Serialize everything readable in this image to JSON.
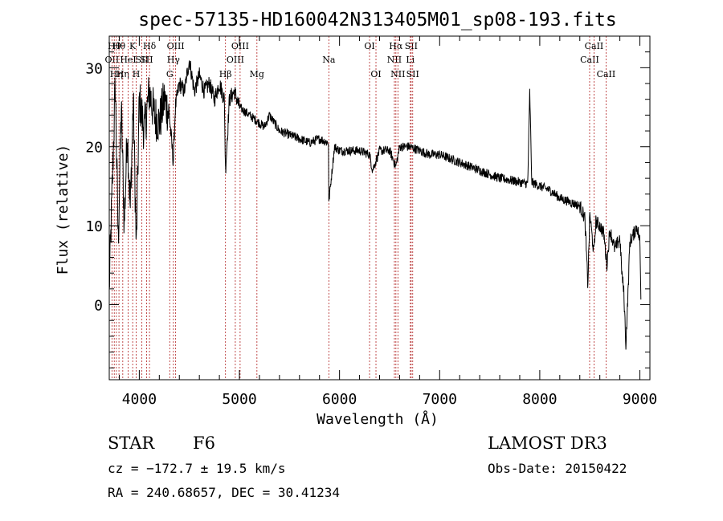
{
  "chart_data": {
    "type": "line",
    "title": "spec-57135-HD160042N313405M01_sp08-193.fits",
    "xlabel": "Wavelength (Å)",
    "ylabel": "Flux (relative)",
    "xlim": [
      3700,
      9100
    ],
    "ylim": [
      -9.5,
      34
    ],
    "xticks": [
      4000,
      5000,
      6000,
      7000,
      8000,
      9000
    ],
    "yticks": [
      0,
      10,
      20,
      30
    ],
    "series": [
      {
        "name": "flux",
        "x": [
          3700,
          3730,
          3760,
          3790,
          3820,
          3850,
          3880,
          3910,
          3940,
          3970,
          4000,
          4050,
          4100,
          4150,
          4200,
          4250,
          4300,
          4340,
          4360,
          4400,
          4450,
          4500,
          4550,
          4600,
          4650,
          4700,
          4750,
          4800,
          4850,
          4861,
          4900,
          4950,
          5000,
          5050,
          5100,
          5150,
          5200,
          5250,
          5300,
          5400,
          5500,
          5600,
          5700,
          5800,
          5890,
          5893,
          5950,
          6000,
          6100,
          6200,
          6300,
          6330,
          6400,
          6500,
          6563,
          6600,
          6700,
          6800,
          6900,
          7000,
          7100,
          7200,
          7300,
          7400,
          7500,
          7600,
          7700,
          7800,
          7880,
          7900,
          7920,
          8000,
          8100,
          8200,
          8300,
          8400,
          8450,
          8480,
          8500,
          8540,
          8560,
          8600,
          8640,
          8670,
          8700,
          8750,
          8800,
          8820,
          8840,
          8860,
          8880,
          8900,
          8940,
          8970,
          9000,
          9010
        ],
        "values": [
          2,
          15,
          28,
          8,
          25,
          10,
          22,
          12,
          26,
          7,
          26,
          22,
          27,
          24,
          23,
          26,
          24,
          18,
          25,
          28,
          27,
          31,
          27,
          29,
          27,
          28,
          26,
          28,
          26,
          17,
          26,
          27,
          25,
          24.5,
          24,
          23.5,
          23,
          22.5,
          24,
          22,
          21.5,
          21,
          20.5,
          21,
          20.5,
          13,
          20,
          19.5,
          19.5,
          19.5,
          19,
          17,
          19.5,
          19.5,
          17.5,
          20,
          20,
          19.5,
          19,
          19,
          18.5,
          18,
          17.5,
          17,
          16.5,
          16,
          15.8,
          15.5,
          15.3,
          27,
          15.5,
          15,
          14.5,
          13.5,
          13,
          12.5,
          11,
          2.5,
          11.5,
          6.5,
          10.5,
          10,
          9,
          5,
          9.5,
          7,
          8.5,
          4,
          1.5,
          -5,
          1,
          8,
          9,
          10,
          8,
          1
        ]
      }
    ],
    "line_marks": [
      {
        "wl": 3727,
        "label": "OII",
        "row": 2
      },
      {
        "wl": 3750,
        "label": "Hθ",
        "row": 1
      },
      {
        "wl": 3771,
        "label": "Hη",
        "row": 3
      },
      {
        "wl": 3797,
        "label": "Hθ",
        "row": 1
      },
      {
        "wl": 3835,
        "label": "Hη",
        "row": 3
      },
      {
        "wl": 3889,
        "label": "HeI",
        "row": 2
      },
      {
        "wl": 3934,
        "label": "K",
        "row": 1
      },
      {
        "wl": 3969,
        "label": "H",
        "row": 3
      },
      {
        "wl": 4026,
        "label": "SII",
        "row": 2
      },
      {
        "wl": 4073,
        "label": "SII",
        "row": 2
      },
      {
        "wl": 4102,
        "label": "Hδ",
        "row": 1
      },
      {
        "wl": 4304,
        "label": "G",
        "row": 3
      },
      {
        "wl": 4341,
        "label": "Hγ",
        "row": 2
      },
      {
        "wl": 4363,
        "label": "OIII",
        "row": 1
      },
      {
        "wl": 4861,
        "label": "Hβ",
        "row": 3
      },
      {
        "wl": 4959,
        "label": "OIII",
        "row": 2
      },
      {
        "wl": 5007,
        "label": "OIII",
        "row": 1
      },
      {
        "wl": 5175,
        "label": "Mg",
        "row": 3
      },
      {
        "wl": 5893,
        "label": "Na",
        "row": 2
      },
      {
        "wl": 6300,
        "label": "OI",
        "row": 1
      },
      {
        "wl": 6364,
        "label": "OI",
        "row": 3
      },
      {
        "wl": 6548,
        "label": "NII",
        "row": 2
      },
      {
        "wl": 6563,
        "label": "Hα",
        "row": 1
      },
      {
        "wl": 6583,
        "label": "NII",
        "row": 3
      },
      {
        "wl": 6707,
        "label": "Li",
        "row": 2
      },
      {
        "wl": 6716,
        "label": "SII",
        "row": 1
      },
      {
        "wl": 6731,
        "label": "SII",
        "row": 3
      },
      {
        "wl": 8498,
        "label": "CaII",
        "row": 2
      },
      {
        "wl": 8542,
        "label": "CaII",
        "row": 1
      },
      {
        "wl": 8662,
        "label": "CaII",
        "row": 3
      }
    ]
  },
  "info": {
    "object_type": "STAR",
    "subclass": "F6",
    "survey": "LAMOST DR3",
    "redshift": "cz = −172.7 ± 19.5 km/s",
    "obs_date": "Obs-Date: 20150422",
    "coords": "RA = 240.68657, DEC =  30.41234"
  }
}
